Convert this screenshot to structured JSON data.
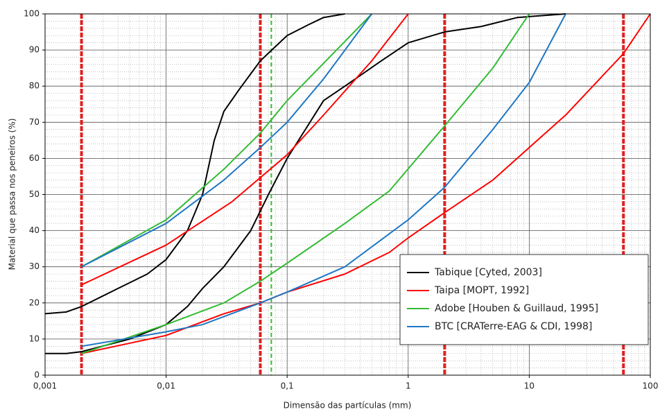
{
  "chart_data": {
    "type": "line",
    "x_label": "Dimensão das partículas (mm)",
    "y_label": "Material que passa nos peneiros (%)",
    "xscale": "log",
    "xlim": [
      0.001,
      100
    ],
    "ylim": [
      0,
      100
    ],
    "xticks": [
      {
        "value": 0.001,
        "label": "0,001"
      },
      {
        "value": 0.01,
        "label": "0,01"
      },
      {
        "value": 0.1,
        "label": "0,1"
      },
      1,
      10,
      100
    ],
    "yticks": [
      0,
      10,
      20,
      30,
      40,
      50,
      60,
      70,
      80,
      90,
      100
    ],
    "grid": true,
    "legend": "lower right",
    "reference_lines": [
      {
        "value": 0.002,
        "color": "#e02020"
      },
      {
        "value": 0.06,
        "color": "#e02020"
      },
      {
        "value": 0.074,
        "color": "#2ec02e"
      },
      {
        "value": 2,
        "color": "#e02020"
      },
      {
        "value": 60,
        "color": "#e02020"
      }
    ],
    "series": [
      {
        "name": "Tabique [Cyted, 2003]",
        "color": "#000000",
        "curves": [
          {
            "x": [
              0.001,
              0.0015,
              0.002,
              0.004,
              0.007,
              0.01,
              0.015,
              0.02,
              0.025,
              0.03,
              0.04,
              0.06,
              0.1,
              0.15,
              0.2,
              0.3
            ],
            "values": [
              17,
              17.5,
              19,
              24,
              28,
              32,
              40,
              50,
              65,
              73,
              79,
              87,
              94,
              97,
              99,
              100
            ]
          },
          {
            "x": [
              0.001,
              0.0015,
              0.002,
              0.005,
              0.01,
              0.015,
              0.02,
              0.03,
              0.05,
              0.07,
              0.1,
              0.2,
              0.3,
              0.6,
              1,
              2,
              4,
              8,
              20
            ],
            "values": [
              6,
              6,
              6.5,
              10,
              14,
              19,
              24,
              30,
              40,
              50,
              60,
              76,
              80,
              87,
              92,
              95,
              96.5,
              99,
              100
            ]
          }
        ]
      },
      {
        "name": "Taipa [MOPT, 1992]",
        "color": "#ff0000",
        "curves": [
          {
            "x": [
              0.002,
              0.01,
              0.035,
              0.1,
              0.2,
              0.5,
              1
            ],
            "values": [
              25,
              36,
              48,
              61,
              72,
              87,
              100
            ]
          },
          {
            "x": [
              0.002,
              0.01,
              0.03,
              0.06,
              0.1,
              0.3,
              0.7,
              1,
              2,
              5,
              10,
              20,
              60,
              100
            ],
            "values": [
              6,
              11,
              17,
              20,
              23,
              28,
              34,
              38,
              45,
              54,
              63,
              72,
              89,
              100
            ]
          }
        ]
      },
      {
        "name": "Adobe [Houben & Guillaud, 1995]",
        "color": "#33bb33",
        "curves": [
          {
            "x": [
              0.002,
              0.01,
              0.03,
              0.06,
              0.1,
              0.5
            ],
            "values": [
              30,
              43,
              57,
              67,
              76,
              100
            ]
          },
          {
            "x": [
              0.002,
              0.01,
              0.03,
              0.06,
              0.1,
              0.3,
              0.7,
              2,
              5,
              10
            ],
            "values": [
              6,
              14,
              20,
              26,
              31,
              42,
              51,
              69,
              85,
              100
            ]
          }
        ]
      },
      {
        "name": "BTC [CRATerre-EAG & CDI, 1998]",
        "color": "#1f77c4",
        "curves": [
          {
            "x": [
              0.002,
              0.01,
              0.03,
              0.06,
              0.1,
              0.2,
              0.5
            ],
            "values": [
              30,
              42,
              54,
              63,
              70,
              82,
              100
            ]
          },
          {
            "x": [
              0.002,
              0.01,
              0.02,
              0.06,
              0.1,
              0.3,
              1,
              2,
              5,
              10,
              20
            ],
            "values": [
              8,
              12,
              14,
              20,
              23,
              30,
              43,
              52,
              68,
              81,
              100
            ]
          }
        ]
      }
    ]
  }
}
